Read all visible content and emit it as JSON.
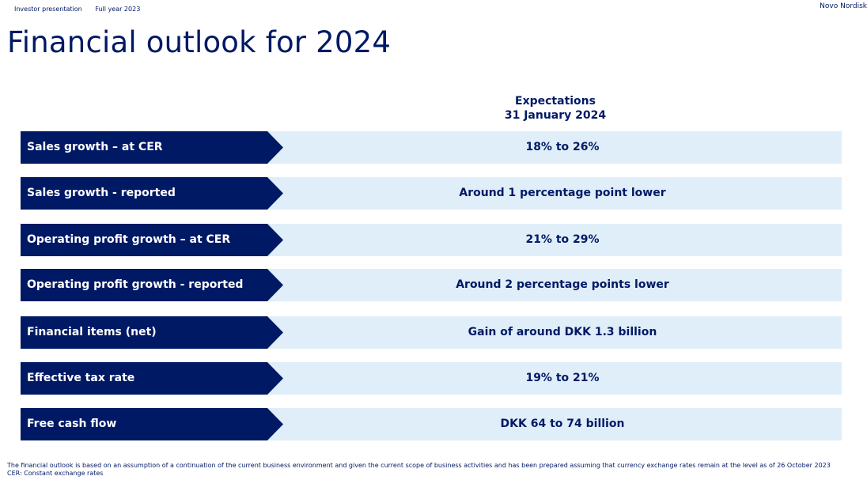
{
  "header": {
    "crumb1": "Investor presentation",
    "crumb2": "Full year 2023",
    "company": "Novo Nordisk"
  },
  "title": "Financial outlook for 2024",
  "column_header": {
    "line1": "Expectations",
    "line2": "31 January 2024"
  },
  "rows": [
    {
      "label": "Sales growth – at CER",
      "value": "18% to 26%"
    },
    {
      "label": "Sales growth - reported",
      "value": "Around 1 percentage point lower"
    },
    {
      "label": "Operating profit growth – at CER",
      "value": "21% to 29%"
    },
    {
      "label": "Operating profit growth - reported",
      "value": "Around 2 percentage points lower"
    },
    {
      "label": "Financial items (net)",
      "value": "Gain of around DKK 1.3 billion"
    },
    {
      "label": "Effective tax rate",
      "value": "19% to 21%"
    },
    {
      "label": "Free cash flow",
      "value": "DKK 64 to 74 billion"
    }
  ],
  "footnotes": {
    "line1": "The financial outlook is based on an assumption of a continuation of the current business environment and given the current scope of business activities and has been prepared assuming that currency exchange rates remain at the level as of 26 October 2023",
    "line2": "CER: Constant exchange rates"
  },
  "colors": {
    "navy": "#001965",
    "light_blue": "#dfeef8"
  }
}
